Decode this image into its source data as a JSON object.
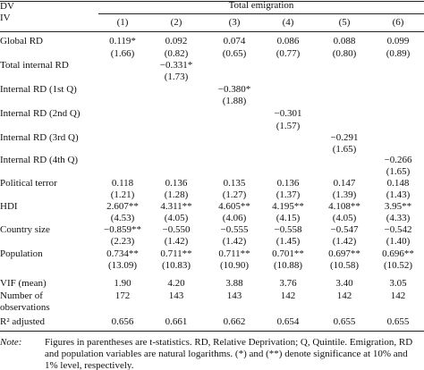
{
  "header": {
    "dv": "DV",
    "iv": "IV",
    "group": "Total emigration",
    "columns": [
      "(1)",
      "(2)",
      "(3)",
      "(4)",
      "(5)",
      "(6)"
    ]
  },
  "table": {
    "rows": [
      {
        "label": "Global RD",
        "values": [
          "0.119*",
          "0.092",
          "0.074",
          "0.086",
          "0.088",
          "0.099"
        ],
        "t_stats": [
          "(1.66)",
          "(0.82)",
          "(0.65)",
          "(0.77)",
          "(0.80)",
          "(0.89)"
        ]
      },
      {
        "label": "Total internal RD",
        "values": [
          null,
          "−0.331*",
          null,
          null,
          null,
          null
        ],
        "t_stats": [
          null,
          "(1.73)",
          null,
          null,
          null,
          null
        ]
      },
      {
        "label": "Internal RD (1st Q)",
        "values": [
          null,
          null,
          "−0.380*",
          null,
          null,
          null
        ],
        "t_stats": [
          null,
          null,
          "(1.88)",
          null,
          null,
          null
        ]
      },
      {
        "label": "Internal RD (2nd Q)",
        "values": [
          null,
          null,
          null,
          "−0.301",
          null,
          null
        ],
        "t_stats": [
          null,
          null,
          null,
          "(1.57)",
          null,
          null
        ]
      },
      {
        "label": "Internal RD (3rd Q)",
        "values": [
          null,
          null,
          null,
          null,
          "−0.291",
          null
        ],
        "t_stats": [
          null,
          null,
          null,
          null,
          "(1.65)",
          null
        ]
      },
      {
        "label": "Internal RD (4th Q)",
        "values": [
          null,
          null,
          null,
          null,
          null,
          "−0.266"
        ],
        "t_stats": [
          null,
          null,
          null,
          null,
          null,
          "(1.65)"
        ]
      },
      {
        "label": "Political terror",
        "values": [
          "0.118",
          "0.136",
          "0.135",
          "0.136",
          "0.147",
          "0.148"
        ],
        "t_stats": [
          "(1.21)",
          "(1.28)",
          "(1.27)",
          "(1.37)",
          "(1.39)",
          "(1.43)"
        ]
      },
      {
        "label": "HDI",
        "values": [
          "2.607**",
          "4.311**",
          "4.605**",
          "4.195**",
          "4.108**",
          "3.95**"
        ],
        "t_stats": [
          "(4.53)",
          "(4.05)",
          "(4.06)",
          "(4.15)",
          "(4.05)",
          "(4.33)"
        ]
      },
      {
        "label": "Country size",
        "values": [
          "−0.859**",
          "−0.550",
          "−0.555",
          "−0.558",
          "−0.547",
          "−0.542"
        ],
        "t_stats": [
          "(2.23)",
          "(1.42)",
          "(1.42)",
          "(1.45)",
          "(1.42)",
          "(1.40)"
        ]
      },
      {
        "label": "Population",
        "values": [
          "0.734**",
          "0.711**",
          "0.711**",
          "0.701**",
          "0.697**",
          "0.696**"
        ],
        "t_stats": [
          "(13.09)",
          "(10.83)",
          "(10.90)",
          "(10.88)",
          "(10.58)",
          "(10.52)"
        ]
      }
    ],
    "stats": [
      {
        "label": "VIF (mean)",
        "values": [
          "1.90",
          "4.20",
          "3.88",
          "3.76",
          "3.40",
          "3.05"
        ]
      },
      {
        "label": "Number of observations",
        "values": [
          "172",
          "143",
          "143",
          "142",
          "142",
          "142"
        ]
      },
      {
        "label": "R² adjusted",
        "values": [
          "0.656",
          "0.661",
          "0.662",
          "0.654",
          "0.655",
          "0.655"
        ]
      }
    ]
  },
  "note": {
    "label": "Note:",
    "text": "Figures in parentheses are t-statistics. RD, Relative Deprivation; Q, Quintile. Emigration, RD and population variables are natural logarithms. (*) and (**) denote significance at 10% and 1% level, respectively."
  }
}
